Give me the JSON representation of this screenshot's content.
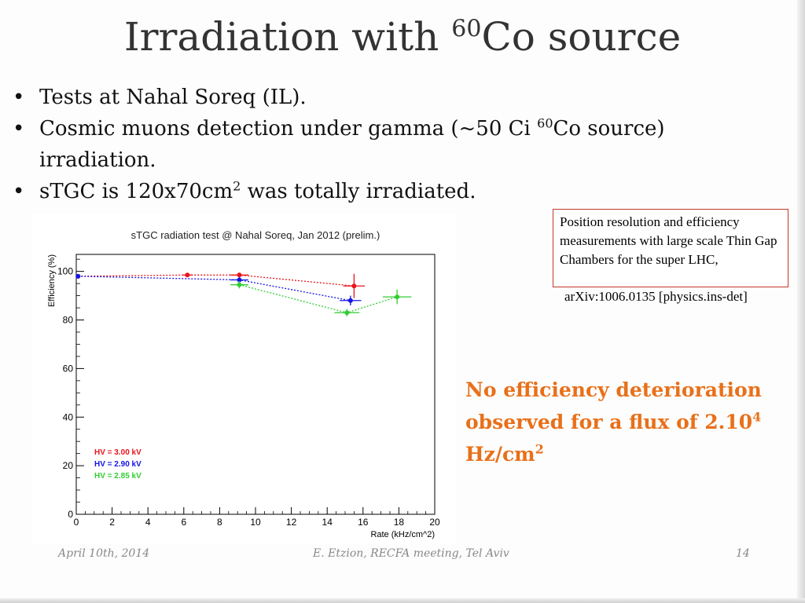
{
  "slide": {
    "title_main": "Irradiation with ",
    "title_sup": "60",
    "title_end": "Co source",
    "bullets": {
      "b1": "Tests at Nahal Soreq (IL).",
      "b2_pre": "Cosmic muons detection under gamma (~50 Ci ",
      "b2_sup": "60",
      "b2_post": "Co source) irradiation.",
      "b3_pre": "sTGC is 120x70cm",
      "b3_sup": "2",
      "b3_post": " was totally irradiated."
    },
    "reference_box": "Position resolution and efficiency measurements with large scale Thin Gap Chambers for the super LHC,",
    "reference_id": "arXiv:1006.0135 [physics.ins-det]",
    "conclusion_pre": "No efficiency deterioration observed for a flux of 2.10",
    "conclusion_sup": "4",
    "conclusion_mid": " Hz/cm",
    "conclusion_sup2": "2",
    "footer": {
      "date": "April 10th, 2014",
      "event": "E. Etzion, RECFA meeting, Tel Aviv",
      "page": "14"
    }
  },
  "chart_data": {
    "type": "scatter",
    "title": "sTGC radiation test @ Nahal Soreq, Jan 2012 (prelim.)",
    "xlabel": "Rate (kHz/cm^2)",
    "ylabel": "Efficiency (%)",
    "xlim": [
      0,
      20
    ],
    "ylim": [
      0,
      107
    ],
    "xticks": [
      0,
      2,
      4,
      6,
      8,
      10,
      12,
      14,
      16,
      18,
      20
    ],
    "yticks": [
      0,
      20,
      40,
      60,
      80,
      100
    ],
    "grid": false,
    "legend_position": "bottom-left",
    "series": [
      {
        "name": "HV = 3.00 kV",
        "color": "#e8141c",
        "points": [
          {
            "x": 0.1,
            "y": 98,
            "xerr": 0.1,
            "yerr": 0
          },
          {
            "x": 6.2,
            "y": 98.5,
            "xerr": 0.3,
            "yerr": 0.5
          },
          {
            "x": 9.1,
            "y": 98.5,
            "xerr": 0.5,
            "yerr": 1
          },
          {
            "x": 15.5,
            "y": 94,
            "xerr": 0.6,
            "yerr": 5
          }
        ]
      },
      {
        "name": "HV = 2.90 kV",
        "color": "#1414e6",
        "points": [
          {
            "x": 0.1,
            "y": 98,
            "xerr": 0.1,
            "yerr": 0
          },
          {
            "x": 9.1,
            "y": 96.5,
            "xerr": 0.5,
            "yerr": 1
          },
          {
            "x": 15.3,
            "y": 88,
            "xerr": 0.6,
            "yerr": 2
          }
        ]
      },
      {
        "name": "HV = 2.85 kV",
        "color": "#33cc33",
        "points": [
          {
            "x": 9.1,
            "y": 94.5,
            "xerr": 0.5,
            "yerr": 1.5
          },
          {
            "x": 15.1,
            "y": 83,
            "xerr": 0.7,
            "yerr": 1.5
          },
          {
            "x": 17.9,
            "y": 89.5,
            "xerr": 0.8,
            "yerr": 3
          }
        ]
      }
    ]
  }
}
